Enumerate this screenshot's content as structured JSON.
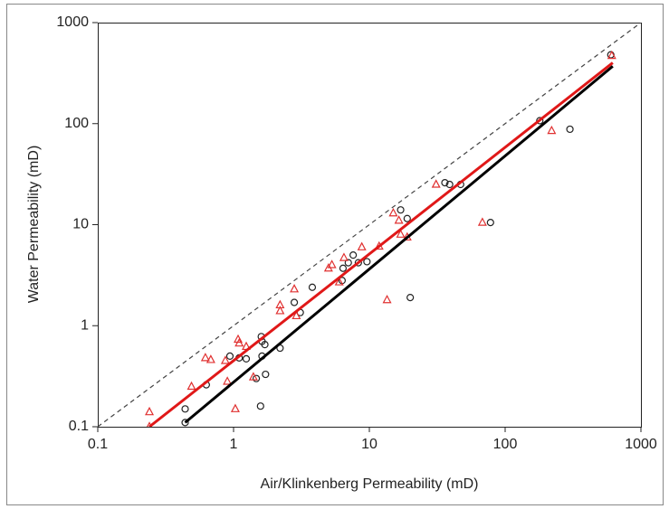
{
  "chart_data": {
    "type": "scatter",
    "x_label": "Air/Klinkenberg Permeability (mD)",
    "y_label": "Water Permeability (mD)",
    "x_scale": "log",
    "y_scale": "log",
    "xlim": [
      0.1,
      1000
    ],
    "ylim": [
      0.1,
      1000
    ],
    "xticks": [
      0.1,
      1,
      10,
      100,
      1000
    ],
    "yticks": [
      0.1,
      1,
      10,
      100,
      1000
    ],
    "series": [
      {
        "style": "circle",
        "color": "#222222",
        "x": [
          0.44,
          0.44,
          0.63,
          0.94,
          1.1,
          1.24,
          1.47,
          1.6,
          1.62,
          1.7,
          1.72,
          1.58,
          1.62,
          2.2,
          2.8,
          3.1,
          3.8,
          6.3,
          6.4,
          7,
          7.6,
          8.3,
          9.6,
          17,
          19,
          20,
          36,
          39,
          47,
          78,
          180,
          300,
          600
        ],
        "values": [
          0.11,
          0.15,
          0.26,
          0.5,
          0.48,
          0.47,
          0.3,
          0.78,
          0.7,
          0.65,
          0.33,
          0.16,
          0.5,
          0.6,
          1.7,
          1.35,
          2.4,
          2.8,
          3.7,
          4.2,
          5,
          4.2,
          4.3,
          14,
          11.5,
          1.9,
          26,
          25,
          25,
          10.5,
          107,
          88,
          480
        ]
      },
      {
        "style": "triangle",
        "color": "#e03030",
        "x": [
          0.24,
          0.24,
          0.49,
          0.62,
          0.68,
          0.87,
          0.9,
          1.08,
          1.1,
          1.03,
          1.24,
          1.4,
          2.2,
          2.2,
          2.8,
          2.9,
          5,
          5.3,
          6,
          6.5,
          8.8,
          11.8,
          13.5,
          15,
          16.5,
          17,
          19,
          31,
          68,
          220,
          610
        ],
        "values": [
          0.14,
          0.1,
          0.25,
          0.48,
          0.46,
          0.45,
          0.28,
          0.73,
          0.67,
          0.15,
          0.62,
          0.31,
          1.4,
          1.6,
          2.3,
          1.25,
          3.7,
          4,
          2.7,
          4.7,
          6,
          6.1,
          1.8,
          13,
          11,
          8,
          7.5,
          25,
          10.5,
          85,
          470
        ]
      },
      {
        "style": "line",
        "color": "#e01818",
        "x": [
          0.24,
          620
        ],
        "values": [
          0.1,
          400
        ]
      },
      {
        "style": "line",
        "color": "#000000",
        "x": [
          0.44,
          620
        ],
        "values": [
          0.11,
          370
        ]
      },
      {
        "style": "dashed",
        "color": "#444444",
        "x": [
          0.1,
          1000
        ],
        "values": [
          0.1,
          1000
        ]
      }
    ]
  }
}
